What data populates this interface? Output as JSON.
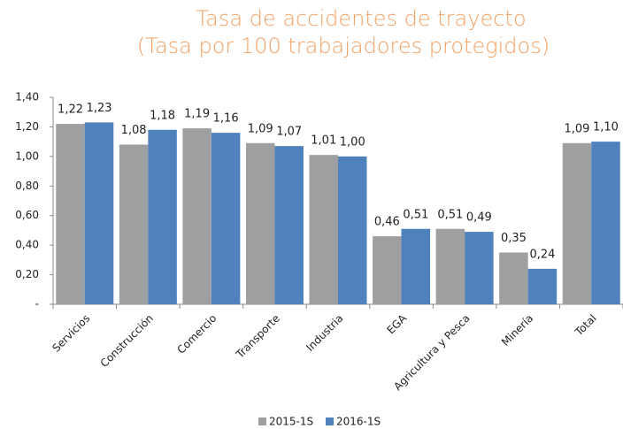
{
  "chart_data": {
    "type": "bar",
    "title": "Tasa de accidentes de trayecto",
    "subtitle": "(Tasa por 100 trabajadores protegidos)",
    "categories": [
      "Servicios",
      "Construcción",
      "Comercio",
      "Transporte",
      "Industria",
      "EGA",
      "Agricultura y Pesca",
      "Minería",
      "Total"
    ],
    "series": [
      {
        "name": "2015-1S",
        "color": "#9d9fa0",
        "values": [
          1.22,
          1.08,
          1.19,
          1.09,
          1.01,
          0.46,
          0.51,
          0.35,
          1.09
        ],
        "value_labels": [
          "1,22",
          "1,08",
          "1,19",
          "1,09",
          "1,01",
          "0,46",
          "0,51",
          "0,35",
          "1,09"
        ]
      },
      {
        "name": "2016-1S",
        "color": "#4f81bd",
        "values": [
          1.23,
          1.18,
          1.16,
          1.07,
          1.0,
          0.51,
          0.49,
          0.24,
          1.1
        ],
        "value_labels": [
          "1,23",
          "1,18",
          "1,16",
          "1,07",
          "1,00",
          "0,51",
          "0,49",
          "0,24",
          "1,10"
        ]
      }
    ],
    "ylim": [
      0,
      1.4
    ],
    "yticks": [
      {
        "value": 0,
        "label": "-"
      },
      {
        "value": 0.2,
        "label": "0,20"
      },
      {
        "value": 0.4,
        "label": "0,40"
      },
      {
        "value": 0.6,
        "label": "0,60"
      },
      {
        "value": 0.8,
        "label": "0,80"
      },
      {
        "value": 1.0,
        "label": "1,00"
      },
      {
        "value": 1.2,
        "label": "1,20"
      },
      {
        "value": 1.4,
        "label": "1,40"
      }
    ],
    "legend": "bottom"
  }
}
